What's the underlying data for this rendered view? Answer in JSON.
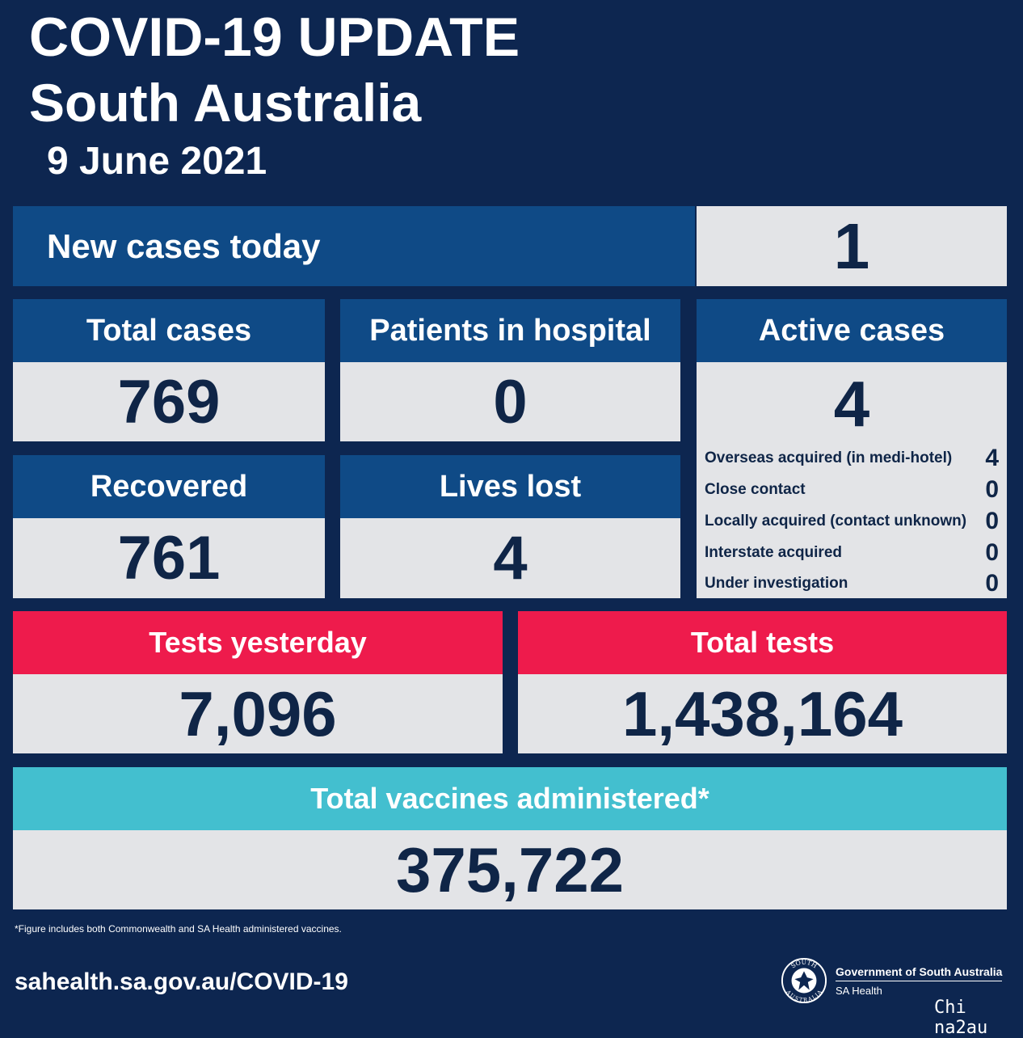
{
  "header": {
    "title_line1": "COVID-19 UPDATE",
    "title_line2": "South Australia",
    "date": "9 June 2021"
  },
  "new_cases": {
    "label": "New cases today",
    "value": "1"
  },
  "total_cases": {
    "label": "Total cases",
    "value": "769"
  },
  "patients_in_hospital": {
    "label": "Patients in hospital",
    "value": "0"
  },
  "active_cases": {
    "label": "Active cases",
    "value": "4",
    "breakdown": [
      {
        "label": "Overseas acquired (in medi-hotel)",
        "value": "4"
      },
      {
        "label": "Close contact",
        "value": "0"
      },
      {
        "label": "Locally acquired (contact unknown)",
        "value": "0"
      },
      {
        "label": "Interstate acquired",
        "value": "0"
      },
      {
        "label": "Under investigation",
        "value": "0"
      }
    ]
  },
  "recovered": {
    "label": "Recovered",
    "value": "761"
  },
  "lives_lost": {
    "label": "Lives lost",
    "value": "4"
  },
  "tests_yesterday": {
    "label": "Tests yesterday",
    "value": "7,096"
  },
  "total_tests": {
    "label": "Total tests",
    "value": "1,438,164"
  },
  "vaccines": {
    "label": "Total vaccines administered*",
    "value": "375,722"
  },
  "footer": {
    "footnote": "*Figure includes both Commonwealth and SA Health administered vaccines.",
    "website": "sahealth.sa.gov.au/COVID-19",
    "gov_line1": "Government of South Australia",
    "gov_line2": "SA Health",
    "seal_top": "SOUTH",
    "seal_bottom": "AUSTRALIA",
    "watermark": "Chi na2au"
  },
  "colors": {
    "background": "#0d2650",
    "header_blue": "#0f4a86",
    "value_grey": "#e3e4e7",
    "value_text": "#0f2547",
    "tests_red": "#ee1b4c",
    "vaccine_teal": "#43bfcf"
  }
}
